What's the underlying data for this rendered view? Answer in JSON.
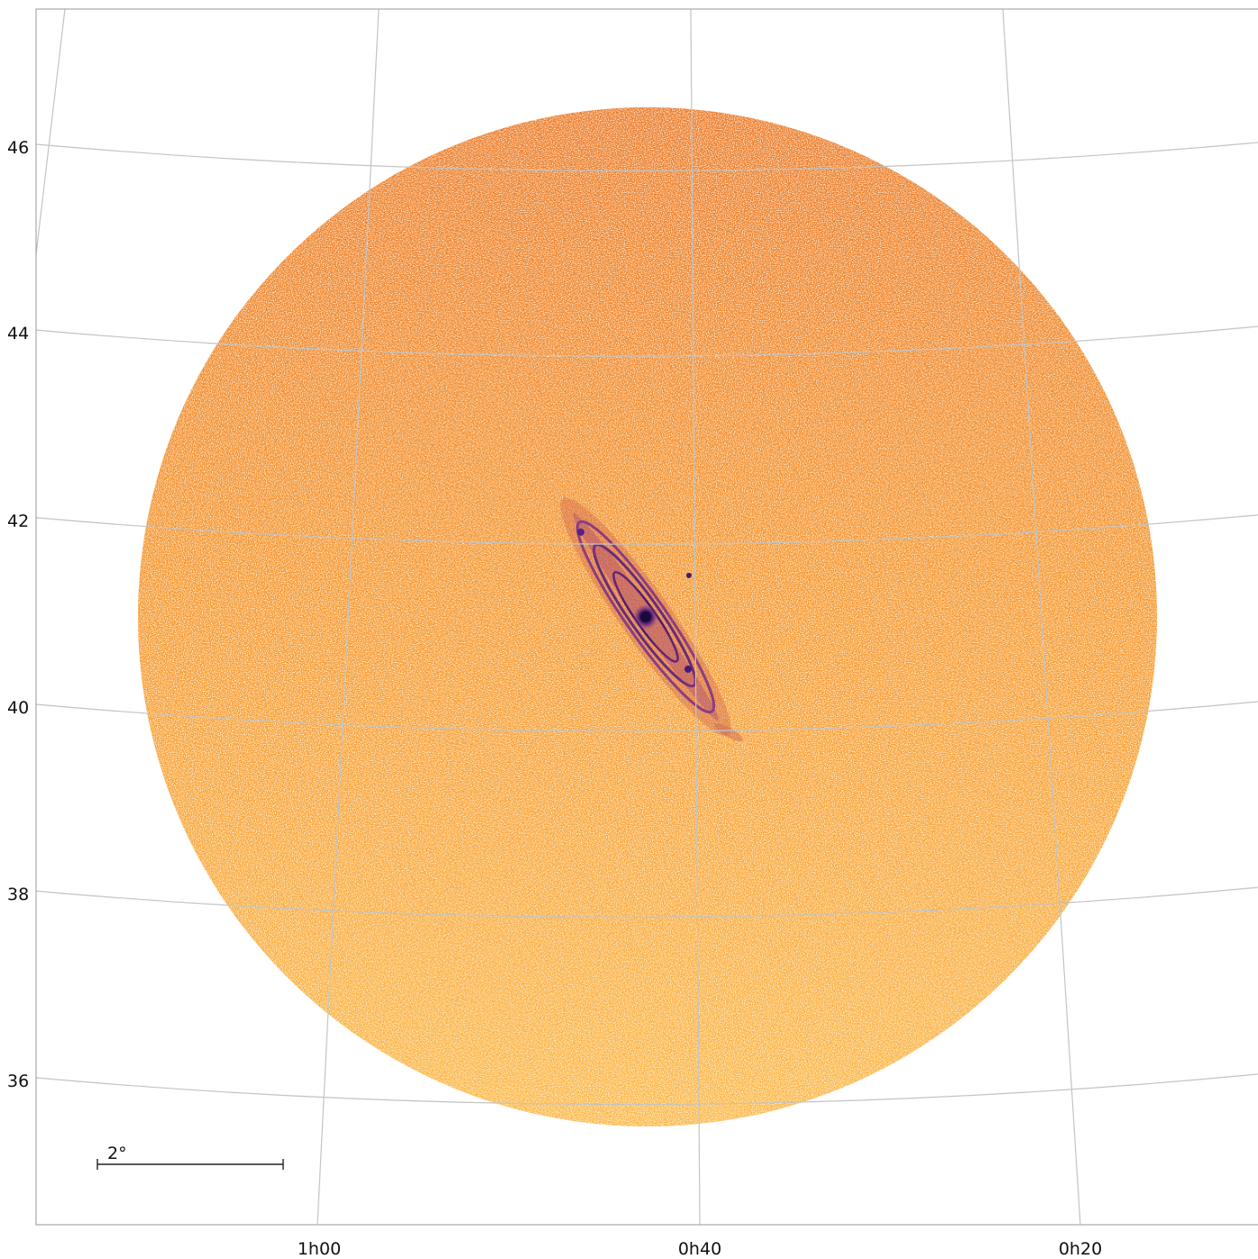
{
  "map": {
    "ra_labels": [
      "1h00",
      "0h40",
      "0h20"
    ],
    "dec_labels": [
      "46",
      "44",
      "42",
      "40",
      "38",
      "36"
    ],
    "scale_bar": {
      "label": "2°",
      "length_deg": 2
    },
    "colormap": "inferno",
    "background_color": "#ffffff",
    "grid_color": "#c4c4c4",
    "source_colors": {
      "disk_low": "#ffd36a",
      "disk_mid": "#f7a23a",
      "disk_high": "#e9762b",
      "galaxy_arms": "#6a2a8a",
      "galaxy_core": "#1a0a3c"
    }
  }
}
